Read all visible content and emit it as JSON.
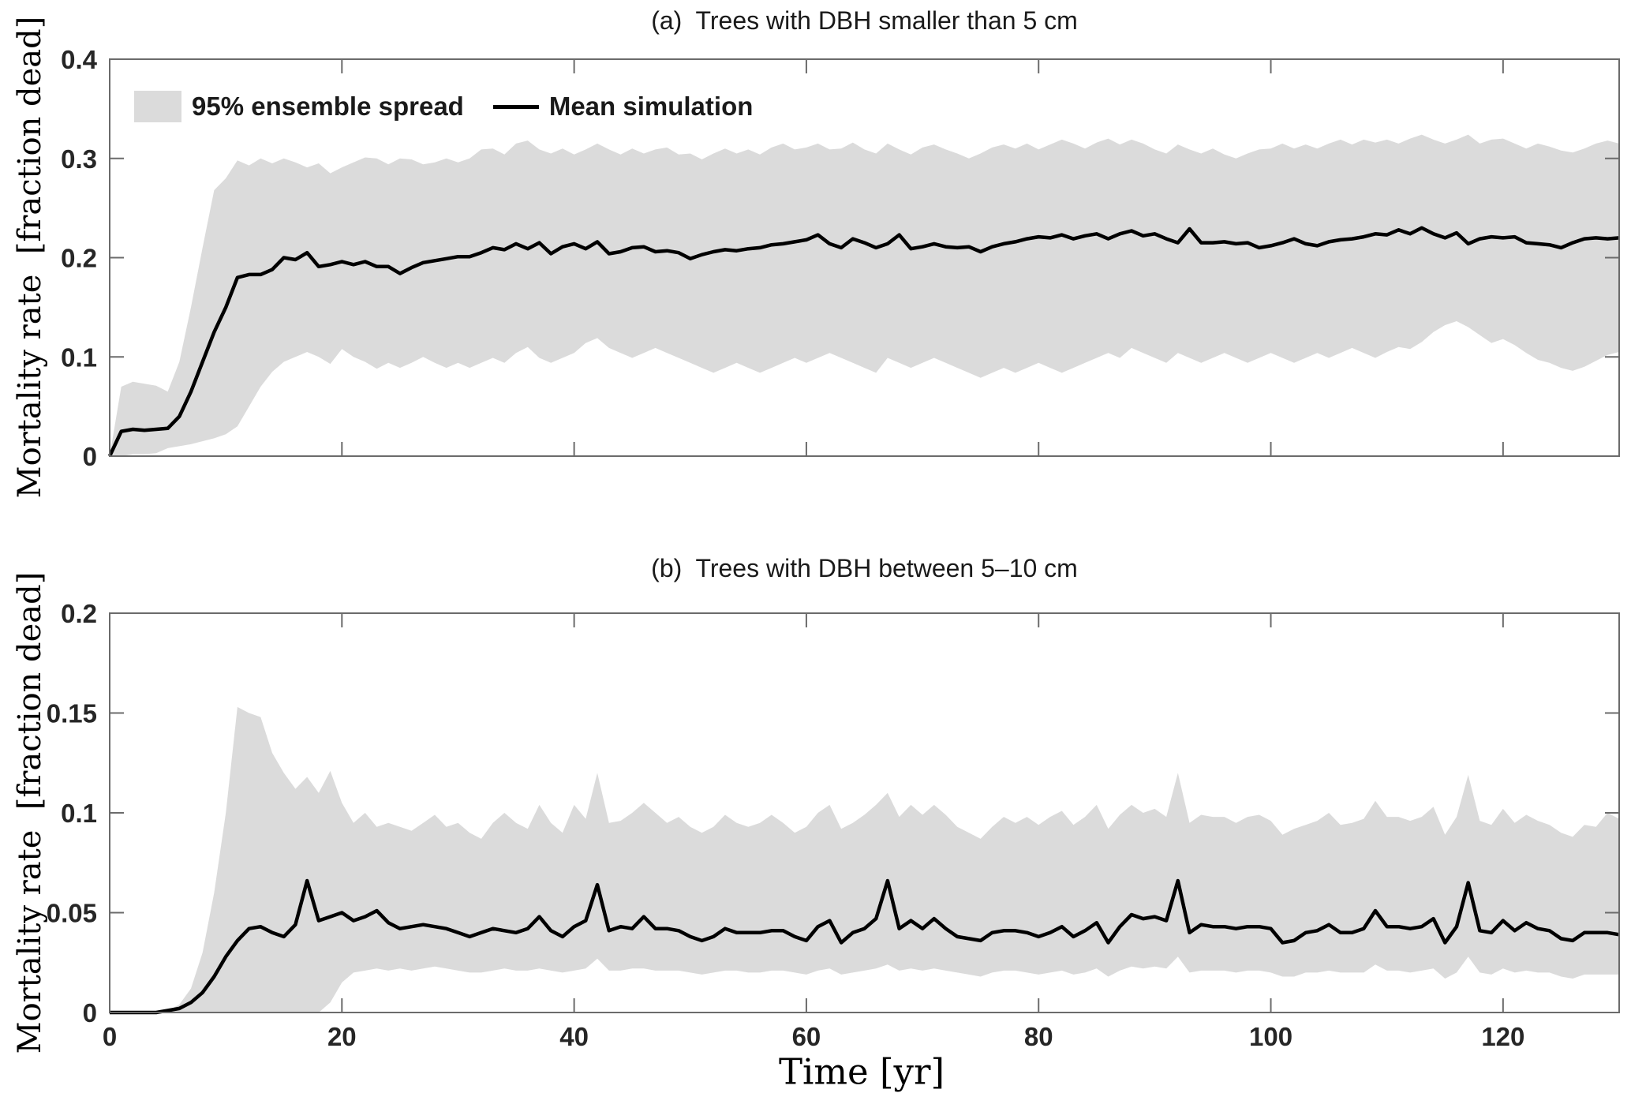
{
  "figure": {
    "background": "#ffffff",
    "legend": {
      "items": [
        {
          "label": "95% ensemble spread",
          "type": "patch",
          "color": "#dbdbdb"
        },
        {
          "label": "Mean simulation",
          "type": "line",
          "color": "#000000"
        }
      ],
      "position": "top-left of panel (a), no frame"
    }
  },
  "colors": {
    "band": "#dbdbdb",
    "mean": "#000000",
    "axis": "#6b6b6b",
    "tick_label": "#262626",
    "background": "#ffffff"
  },
  "chart_data": [
    {
      "type": "line",
      "panel": "a",
      "title": "(a)  Trees with DBH smaller than 5 cm",
      "ylabel": "Mortality rate  [fraction dead]",
      "xlabel": "Time [yr]",
      "xlim": [
        0,
        130
      ],
      "ylim": [
        0,
        0.4
      ],
      "xticks": [
        0,
        20,
        40,
        60,
        80,
        100,
        120
      ],
      "xtick_labels": [
        "0",
        "20",
        "40",
        "60",
        "80",
        "100",
        "120"
      ],
      "show_xtick_labels": false,
      "yticks": [
        0,
        0.1,
        0.2,
        0.3,
        0.4
      ],
      "ytick_labels": [
        "0",
        "0.1",
        "0.2",
        "0.3",
        "0.4"
      ],
      "grid": false,
      "x_start": 0,
      "x_step": 1,
      "series": [
        {
          "name": "Mean simulation",
          "values": [
            0.0,
            0.025,
            0.027,
            0.026,
            0.027,
            0.028,
            0.04,
            0.065,
            0.095,
            0.125,
            0.15,
            0.18,
            0.183,
            0.183,
            0.188,
            0.2,
            0.198,
            0.205,
            0.191,
            0.193,
            0.196,
            0.193,
            0.196,
            0.191,
            0.191,
            0.184,
            0.19,
            0.195,
            0.197,
            0.199,
            0.201,
            0.201,
            0.205,
            0.21,
            0.208,
            0.214,
            0.209,
            0.215,
            0.204,
            0.211,
            0.214,
            0.209,
            0.216,
            0.204,
            0.206,
            0.21,
            0.211,
            0.206,
            0.207,
            0.205,
            0.199,
            0.203,
            0.206,
            0.208,
            0.207,
            0.209,
            0.21,
            0.213,
            0.214,
            0.216,
            0.218,
            0.223,
            0.214,
            0.21,
            0.219,
            0.215,
            0.21,
            0.214,
            0.223,
            0.209,
            0.211,
            0.214,
            0.211,
            0.21,
            0.211,
            0.206,
            0.211,
            0.214,
            0.216,
            0.219,
            0.221,
            0.22,
            0.223,
            0.219,
            0.222,
            0.224,
            0.219,
            0.224,
            0.227,
            0.222,
            0.224,
            0.219,
            0.215,
            0.229,
            0.215,
            0.215,
            0.216,
            0.214,
            0.215,
            0.21,
            0.212,
            0.215,
            0.219,
            0.214,
            0.212,
            0.216,
            0.218,
            0.219,
            0.221,
            0.224,
            0.223,
            0.228,
            0.224,
            0.23,
            0.224,
            0.22,
            0.225,
            0.214,
            0.219,
            0.221,
            0.22,
            0.221,
            0.215,
            0.214,
            0.213,
            0.21,
            0.215,
            0.219,
            0.22,
            0.219,
            0.22
          ]
        },
        {
          "name": "95% ensemble spread upper",
          "values": [
            0.0,
            0.07,
            0.075,
            0.073,
            0.071,
            0.065,
            0.095,
            0.15,
            0.21,
            0.268,
            0.28,
            0.298,
            0.293,
            0.3,
            0.295,
            0.3,
            0.296,
            0.291,
            0.295,
            0.285,
            0.291,
            0.296,
            0.301,
            0.3,
            0.294,
            0.3,
            0.299,
            0.294,
            0.296,
            0.3,
            0.296,
            0.3,
            0.309,
            0.31,
            0.304,
            0.315,
            0.318,
            0.309,
            0.305,
            0.31,
            0.304,
            0.309,
            0.315,
            0.309,
            0.304,
            0.31,
            0.305,
            0.309,
            0.311,
            0.304,
            0.305,
            0.299,
            0.305,
            0.31,
            0.305,
            0.309,
            0.304,
            0.311,
            0.315,
            0.309,
            0.311,
            0.315,
            0.309,
            0.31,
            0.316,
            0.309,
            0.305,
            0.315,
            0.309,
            0.304,
            0.311,
            0.314,
            0.309,
            0.305,
            0.3,
            0.305,
            0.311,
            0.314,
            0.31,
            0.315,
            0.309,
            0.314,
            0.319,
            0.315,
            0.31,
            0.316,
            0.32,
            0.314,
            0.319,
            0.315,
            0.309,
            0.305,
            0.314,
            0.309,
            0.305,
            0.31,
            0.304,
            0.3,
            0.305,
            0.309,
            0.31,
            0.315,
            0.31,
            0.314,
            0.31,
            0.315,
            0.319,
            0.314,
            0.319,
            0.316,
            0.319,
            0.315,
            0.32,
            0.324,
            0.319,
            0.315,
            0.319,
            0.324,
            0.315,
            0.319,
            0.32,
            0.315,
            0.31,
            0.315,
            0.312,
            0.308,
            0.306,
            0.31,
            0.315,
            0.318,
            0.315
          ]
        },
        {
          "name": "95% ensemble spread lower",
          "values": [
            0.0,
            0.0,
            0.002,
            0.002,
            0.003,
            0.008,
            0.01,
            0.012,
            0.015,
            0.018,
            0.022,
            0.03,
            0.05,
            0.07,
            0.085,
            0.095,
            0.1,
            0.105,
            0.1,
            0.093,
            0.108,
            0.1,
            0.095,
            0.088,
            0.094,
            0.089,
            0.094,
            0.1,
            0.094,
            0.089,
            0.094,
            0.089,
            0.094,
            0.099,
            0.094,
            0.104,
            0.11,
            0.099,
            0.094,
            0.099,
            0.104,
            0.114,
            0.119,
            0.109,
            0.104,
            0.099,
            0.104,
            0.109,
            0.104,
            0.099,
            0.094,
            0.089,
            0.084,
            0.089,
            0.094,
            0.089,
            0.084,
            0.089,
            0.094,
            0.099,
            0.094,
            0.099,
            0.104,
            0.099,
            0.094,
            0.089,
            0.084,
            0.099,
            0.094,
            0.089,
            0.094,
            0.099,
            0.094,
            0.089,
            0.084,
            0.079,
            0.084,
            0.089,
            0.084,
            0.089,
            0.094,
            0.089,
            0.084,
            0.089,
            0.094,
            0.099,
            0.104,
            0.099,
            0.109,
            0.104,
            0.099,
            0.094,
            0.104,
            0.099,
            0.094,
            0.099,
            0.104,
            0.099,
            0.094,
            0.099,
            0.104,
            0.099,
            0.094,
            0.099,
            0.104,
            0.099,
            0.104,
            0.109,
            0.104,
            0.099,
            0.105,
            0.11,
            0.108,
            0.115,
            0.125,
            0.132,
            0.136,
            0.13,
            0.122,
            0.114,
            0.118,
            0.112,
            0.104,
            0.097,
            0.094,
            0.089,
            0.086,
            0.09,
            0.096,
            0.102,
            0.105
          ]
        }
      ]
    },
    {
      "type": "line",
      "panel": "b",
      "title": "(b)  Trees with DBH between 5–10 cm",
      "ylabel": "Mortality rate  [fraction dead]",
      "xlabel": "Time [yr]",
      "xlim": [
        0,
        130
      ],
      "ylim": [
        0,
        0.2
      ],
      "xticks": [
        0,
        20,
        40,
        60,
        80,
        100,
        120
      ],
      "xtick_labels": [
        "0",
        "20",
        "40",
        "60",
        "80",
        "100",
        "120"
      ],
      "show_xtick_labels": true,
      "yticks": [
        0,
        0.05,
        0.1,
        0.15,
        0.2
      ],
      "ytick_labels": [
        "0",
        "0.05",
        "0.1",
        "0.15",
        "0.2"
      ],
      "grid": false,
      "x_start": 0,
      "x_step": 1,
      "series": [
        {
          "name": "Mean simulation",
          "values": [
            0.0,
            0.0,
            0.0,
            0.0,
            0.0,
            0.001,
            0.002,
            0.005,
            0.01,
            0.018,
            0.028,
            0.036,
            0.042,
            0.043,
            0.04,
            0.038,
            0.044,
            0.066,
            0.046,
            0.048,
            0.05,
            0.046,
            0.048,
            0.051,
            0.045,
            0.042,
            0.043,
            0.044,
            0.043,
            0.042,
            0.04,
            0.038,
            0.04,
            0.042,
            0.041,
            0.04,
            0.042,
            0.048,
            0.041,
            0.038,
            0.043,
            0.046,
            0.064,
            0.041,
            0.043,
            0.042,
            0.048,
            0.042,
            0.042,
            0.041,
            0.038,
            0.036,
            0.038,
            0.042,
            0.04,
            0.04,
            0.04,
            0.041,
            0.041,
            0.038,
            0.036,
            0.043,
            0.046,
            0.035,
            0.04,
            0.042,
            0.047,
            0.066,
            0.042,
            0.046,
            0.042,
            0.047,
            0.042,
            0.038,
            0.037,
            0.036,
            0.04,
            0.041,
            0.041,
            0.04,
            0.038,
            0.04,
            0.043,
            0.038,
            0.041,
            0.045,
            0.035,
            0.043,
            0.049,
            0.047,
            0.048,
            0.046,
            0.066,
            0.04,
            0.044,
            0.043,
            0.043,
            0.042,
            0.043,
            0.043,
            0.042,
            0.035,
            0.036,
            0.04,
            0.041,
            0.044,
            0.04,
            0.04,
            0.042,
            0.051,
            0.043,
            0.043,
            0.042,
            0.043,
            0.047,
            0.035,
            0.043,
            0.065,
            0.041,
            0.04,
            0.046,
            0.041,
            0.045,
            0.042,
            0.041,
            0.037,
            0.036,
            0.04,
            0.04,
            0.04,
            0.039
          ]
        },
        {
          "name": "95% ensemble spread upper",
          "values": [
            0.0,
            0.0,
            0.0,
            0.0,
            0.0,
            0.001,
            0.004,
            0.012,
            0.03,
            0.06,
            0.1,
            0.153,
            0.15,
            0.148,
            0.13,
            0.12,
            0.112,
            0.118,
            0.11,
            0.121,
            0.105,
            0.095,
            0.1,
            0.093,
            0.095,
            0.093,
            0.091,
            0.095,
            0.099,
            0.093,
            0.095,
            0.09,
            0.087,
            0.095,
            0.1,
            0.095,
            0.092,
            0.104,
            0.095,
            0.09,
            0.104,
            0.097,
            0.12,
            0.095,
            0.096,
            0.1,
            0.105,
            0.1,
            0.095,
            0.098,
            0.093,
            0.09,
            0.093,
            0.099,
            0.095,
            0.093,
            0.095,
            0.099,
            0.095,
            0.09,
            0.093,
            0.1,
            0.104,
            0.092,
            0.095,
            0.099,
            0.104,
            0.11,
            0.098,
            0.104,
            0.099,
            0.104,
            0.099,
            0.093,
            0.09,
            0.087,
            0.093,
            0.098,
            0.095,
            0.098,
            0.094,
            0.098,
            0.101,
            0.094,
            0.098,
            0.104,
            0.092,
            0.099,
            0.104,
            0.1,
            0.102,
            0.098,
            0.12,
            0.095,
            0.099,
            0.098,
            0.098,
            0.095,
            0.098,
            0.099,
            0.096,
            0.089,
            0.092,
            0.094,
            0.096,
            0.1,
            0.094,
            0.095,
            0.097,
            0.106,
            0.098,
            0.098,
            0.096,
            0.098,
            0.103,
            0.089,
            0.098,
            0.119,
            0.096,
            0.094,
            0.102,
            0.095,
            0.099,
            0.096,
            0.094,
            0.09,
            0.088,
            0.094,
            0.093,
            0.1,
            0.097
          ]
        },
        {
          "name": "95% ensemble spread lower",
          "values": [
            0.0,
            0.0,
            0.0,
            0.0,
            0.0,
            0.0,
            0.0,
            0.0,
            0.0,
            0.0,
            0.0,
            0.0,
            0.0,
            0.0,
            0.0,
            0.0,
            0.0,
            0.0,
            0.0,
            0.005,
            0.015,
            0.02,
            0.021,
            0.022,
            0.021,
            0.022,
            0.021,
            0.022,
            0.023,
            0.022,
            0.021,
            0.02,
            0.02,
            0.021,
            0.022,
            0.021,
            0.021,
            0.022,
            0.021,
            0.02,
            0.021,
            0.022,
            0.027,
            0.021,
            0.021,
            0.022,
            0.022,
            0.021,
            0.021,
            0.021,
            0.02,
            0.019,
            0.02,
            0.021,
            0.021,
            0.02,
            0.02,
            0.021,
            0.021,
            0.02,
            0.019,
            0.021,
            0.022,
            0.019,
            0.02,
            0.021,
            0.022,
            0.024,
            0.021,
            0.022,
            0.021,
            0.022,
            0.021,
            0.02,
            0.019,
            0.018,
            0.02,
            0.021,
            0.021,
            0.02,
            0.019,
            0.02,
            0.021,
            0.019,
            0.02,
            0.022,
            0.018,
            0.021,
            0.023,
            0.022,
            0.023,
            0.022,
            0.028,
            0.02,
            0.021,
            0.021,
            0.021,
            0.02,
            0.021,
            0.021,
            0.02,
            0.018,
            0.018,
            0.02,
            0.02,
            0.021,
            0.02,
            0.02,
            0.02,
            0.024,
            0.021,
            0.021,
            0.02,
            0.021,
            0.022,
            0.017,
            0.02,
            0.028,
            0.02,
            0.019,
            0.022,
            0.02,
            0.021,
            0.02,
            0.02,
            0.018,
            0.017,
            0.019,
            0.019,
            0.019,
            0.019
          ]
        }
      ]
    }
  ]
}
